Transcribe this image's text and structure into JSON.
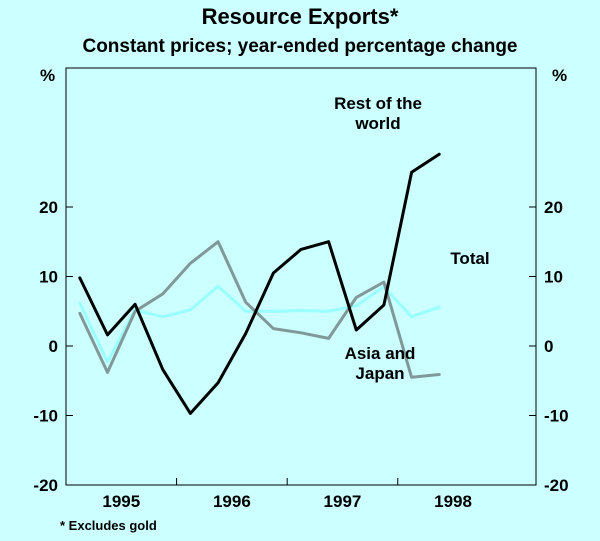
{
  "chart_data": {
    "type": "line",
    "title": "Resource Exports*",
    "subtitle": "Constant prices; year-ended percentage change",
    "ylabel_left": "%",
    "ylabel_right": "%",
    "ylim": [
      -20,
      40
    ],
    "yticks": [
      20,
      10,
      0,
      -10,
      -20
    ],
    "ytick_labels": [
      "20",
      "10",
      "0",
      "-10",
      "-20"
    ],
    "x_range": [
      1994.5,
      1998.75
    ],
    "xticks": [
      {
        "label": "1995",
        "pos": 1995.0
      },
      {
        "label": "1996",
        "pos": 1996.0
      },
      {
        "label": "1997",
        "pos": 1997.0
      },
      {
        "label": "1998",
        "pos": 1998.0
      }
    ],
    "year_boundaries": [
      1995.5,
      1996.5,
      1997.5
    ],
    "series": [
      {
        "name": "Rest of the world",
        "label_lines": [
          "Rest  of the",
          "world"
        ],
        "color": "#000000",
        "x": [
          1994.625,
          1994.875,
          1995.125,
          1995.375,
          1995.625,
          1995.875,
          1996.125,
          1996.375,
          1996.625,
          1996.875,
          1997.125,
          1997.375,
          1997.625,
          1997.875
        ],
        "values": [
          9.8,
          1.6,
          6.0,
          -3.4,
          -9.7,
          -5.3,
          1.8,
          10.5,
          13.9,
          15.0,
          2.3,
          5.9,
          25.0,
          27.6
        ]
      },
      {
        "name": "Total",
        "label_lines": [
          "Total"
        ],
        "color": "#99ffff",
        "x": [
          1994.625,
          1994.875,
          1995.125,
          1995.375,
          1995.625,
          1995.875,
          1996.125,
          1996.375,
          1996.625,
          1996.875,
          1997.125,
          1997.375,
          1997.625,
          1997.875
        ],
        "values": [
          6.2,
          -2.3,
          5.2,
          4.2,
          5.2,
          8.6,
          5.0,
          5.0,
          5.1,
          5.0,
          5.8,
          8.5,
          4.2,
          5.6
        ]
      },
      {
        "name": "Asia and Japan",
        "label_lines": [
          "Asia and",
          "Japan"
        ],
        "color": "#809898",
        "x": [
          1994.625,
          1994.875,
          1995.125,
          1995.375,
          1995.625,
          1995.875,
          1996.125,
          1996.375,
          1996.625,
          1996.875,
          1997.125,
          1997.375,
          1997.625,
          1997.875
        ],
        "values": [
          4.7,
          -3.8,
          5.0,
          7.5,
          11.9,
          15.0,
          6.3,
          2.5,
          1.9,
          1.1,
          7.0,
          9.2,
          -4.5,
          -4.1
        ]
      }
    ]
  },
  "footnote": "* Excludes gold"
}
